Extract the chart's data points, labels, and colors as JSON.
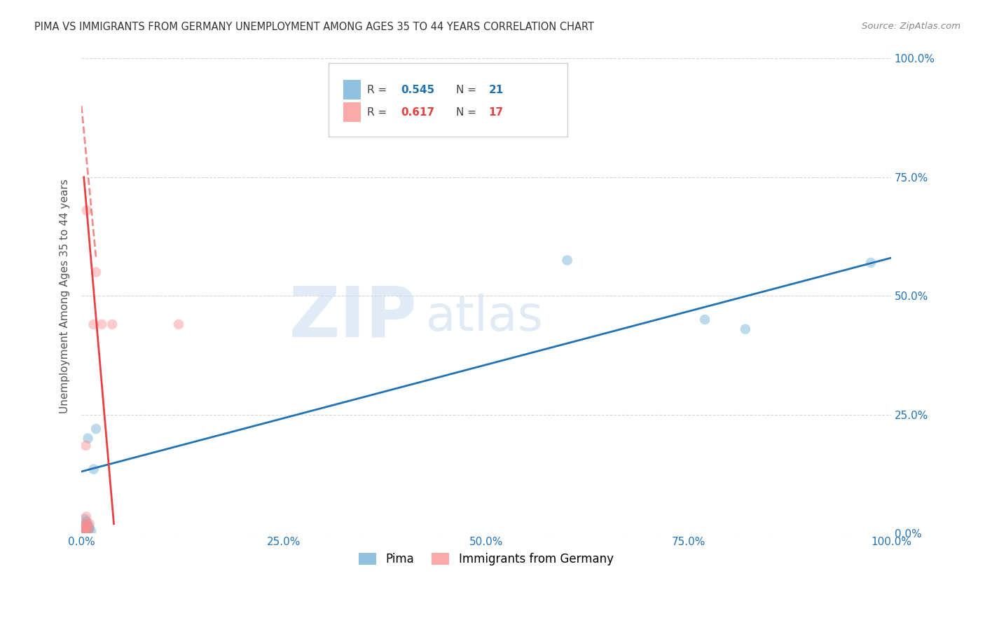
{
  "title": "PIMA VS IMMIGRANTS FROM GERMANY UNEMPLOYMENT AMONG AGES 35 TO 44 YEARS CORRELATION CHART",
  "source": "Source: ZipAtlas.com",
  "ylabel": "Unemployment Among Ages 35 to 44 years",
  "watermark_zip": "ZIP",
  "watermark_atlas": "atlas",
  "legend_blue_r": "0.545",
  "legend_blue_n": "21",
  "legend_pink_r": "0.617",
  "legend_pink_n": "17",
  "pima_x": [
    0.3,
    0.5,
    0.7,
    1.0,
    0.8,
    0.6,
    1.2,
    0.4,
    0.9,
    0.55,
    0.45,
    0.65,
    0.75,
    0.35,
    1.5,
    0.8,
    1.8,
    60.0,
    77.0,
    82.0,
    97.5
  ],
  "pima_y": [
    0.5,
    1.5,
    2.0,
    1.0,
    0.5,
    2.5,
    0.5,
    3.0,
    1.5,
    0.8,
    0.3,
    0.6,
    1.2,
    0.3,
    13.5,
    20.0,
    22.0,
    57.5,
    45.0,
    43.0,
    57.0
  ],
  "germany_x": [
    0.3,
    0.5,
    0.6,
    0.7,
    0.8,
    0.9,
    0.4,
    0.55,
    1.0,
    1.5,
    1.8,
    0.65,
    2.5,
    3.8,
    0.45,
    0.35,
    12.0
  ],
  "germany_y": [
    0.5,
    2.0,
    3.5,
    2.0,
    0.5,
    1.0,
    1.5,
    18.5,
    2.0,
    44.0,
    55.0,
    68.0,
    44.0,
    44.0,
    1.0,
    0.8,
    44.0
  ],
  "blue_line_x0": 0,
  "blue_line_y0": 13.0,
  "blue_line_x1": 100,
  "blue_line_y1": 58.0,
  "pink_solid_x0": 0.3,
  "pink_solid_y0": 75.0,
  "pink_solid_x1": 4.0,
  "pink_solid_y1": 2.0,
  "pink_dashed_x0": 0.0,
  "pink_dashed_y0": 90.0,
  "pink_dashed_x1": 1.8,
  "pink_dashed_y1": 58.0,
  "xlim": [
    0,
    100
  ],
  "ylim": [
    0,
    100
  ],
  "xtick_vals": [
    0,
    25,
    50,
    75,
    100
  ],
  "xtick_labels": [
    "0.0%",
    "25.0%",
    "50.0%",
    "75.0%",
    "100.0%"
  ],
  "ytick_vals": [
    0,
    25,
    50,
    75,
    100
  ],
  "ytick_labels": [
    "0.0%",
    "25.0%",
    "50.0%",
    "75.0%",
    "100.0%"
  ],
  "blue_scatter_color": "#6baed6",
  "pink_scatter_color": "#fc8d8d",
  "blue_line_color": "#2171b5",
  "pink_line_color": "#e84040",
  "axis_label_color": "#2171b5",
  "title_color": "#333333",
  "source_color": "#888888",
  "watermark_color": "#ccdff0",
  "grid_color": "#cccccc",
  "marker_size": 110,
  "marker_alpha": 0.45,
  "line_width": 2.0
}
